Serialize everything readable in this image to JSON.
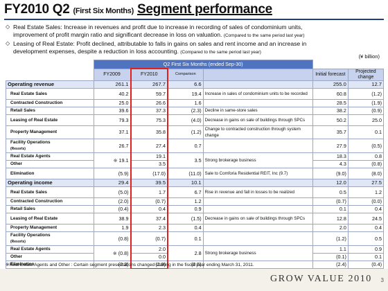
{
  "title": {
    "main": "FY2010 Q2",
    "sub": "(First Six Months)",
    "main2": "Segment performance"
  },
  "bullets": [
    {
      "mark": "◇",
      "line1": "Real Estate Sales: Increase in revenues and profit due to increase in recording of sales of condominium units,",
      "line2": "improvement of profit margin ratio and significant decrease in loss on valuation.",
      "note": "(Compared to the same period last year)"
    },
    {
      "mark": "◇",
      "line1": "Leasing of Real Estate: Profit declined, attributable to falls in gains on sales and rent income and an increase in",
      "line2": "development expenses, despite a reduction in loss accounting.",
      "note": "(Compared to the same period last year)"
    }
  ],
  "unit": "(¥ billion)",
  "table": {
    "group_header": "Q2 First Six Months (ended Sep-30)",
    "headers": {
      "fy2009": "FY2009",
      "fy2010": "FY2010",
      "comparison": "Comparison",
      "initial": "Initial forecast",
      "projected": "Projected change"
    },
    "rows": [
      {
        "label": "Operating revenue",
        "fy2009": "261.1",
        "fy2010": "267.7",
        "comp": "6.6",
        "comment": "",
        "initial": "255.0",
        "proj": "12.7"
      },
      {
        "label": "Real Estate Sales",
        "fy2009": "40.2",
        "fy2010": "59.7",
        "comp": "19.4",
        "comment": "Increase in sales of condominium units to be recorded",
        "initial": "60.8",
        "proj": "(1.2)"
      },
      {
        "label": "Contracted Construction",
        "fy2009": "25.0",
        "fy2010": "26.6",
        "comp": "1.6",
        "comment": "",
        "initial": "28.5",
        "proj": "(1.9)"
      },
      {
        "label": "Retail Sales",
        "fy2009": "39.6",
        "fy2010": "37.3",
        "comp": "(2.3)",
        "comment": "Decline in same-store sales",
        "initial": "38.2",
        "proj": "(0.9)"
      },
      {
        "label": "Leasing of Real Estate",
        "fy2009": "79.3",
        "fy2010": "75.3",
        "comp": "(4.0)",
        "comment": "Decrease in gains on sale of buildings through SPCs",
        "initial": "50.2",
        "proj": "25.0"
      },
      {
        "label": "Property Management",
        "fy2009": "37.1",
        "fy2010": "35.8",
        "comp": "(1.2)",
        "comment": "Change to contracted construction through system change",
        "initial": "35.7",
        "proj": "0.1"
      },
      {
        "label": "Facility Operations",
        "label_note": "(Resorts)",
        "fy2009": "26.7",
        "fy2010": "27.4",
        "comp": "0.7",
        "comment": "",
        "initial": "27.9",
        "proj": "(0.5)"
      },
      {
        "label": "Real Estate Agents",
        "fy2010": "19.1",
        "initial": "18.3",
        "proj": "0.8"
      },
      {
        "label": "Other",
        "fy2010": "3.5",
        "initial": "4.3",
        "proj": "(0.8)"
      },
      {
        "label": "Elimination",
        "fy2009": "(5.9)",
        "fy2010": "(17.0)",
        "comp": "(11.0)",
        "comment": "Sale to Comforia Residential REIT, Inc (9.7)",
        "initial": "(9.0)",
        "proj": "(8.0)"
      },
      {
        "label": "Operating income",
        "fy2009": "29.4",
        "fy2010": "39.5",
        "comp": "10.1",
        "comment": "",
        "initial": "12.0",
        "proj": "27.5"
      },
      {
        "label": "Real Estate Sales",
        "fy2009": "(5.0)",
        "fy2010": "1.7",
        "comp": "6.7",
        "comment": "Rise in revenue and fall in losses to be realized",
        "initial": "0.5",
        "proj": "1.2"
      },
      {
        "label": "Contracted Construction",
        "fy2009": "(2.0)",
        "fy2010": "(0.7)",
        "comp": "1.2",
        "comment": "",
        "initial": "(0.7)",
        "proj": "(0.0)"
      },
      {
        "label": "Retail Sales",
        "fy2009": "(0.4)",
        "fy2010": "0.4",
        "comp": "0.9",
        "comment": "",
        "initial": "0.1",
        "proj": "0.4"
      },
      {
        "label": "Leasing of Real Estate",
        "fy2009": "38.9",
        "fy2010": "37.4",
        "comp": "(1.5)",
        "comment": "Decrease in gains on sale of buildings through SPCs",
        "initial": "12.8",
        "proj": "24.5"
      },
      {
        "label": "Property Management",
        "fy2009": "1.9",
        "fy2010": "2.3",
        "comp": "0.4",
        "comment": "",
        "initial": "2.0",
        "proj": "0.4"
      },
      {
        "label": "Facility Operations",
        "label_note": "(Resorts)",
        "fy2009": "(0.8)",
        "fy2010": "(0.7)",
        "comp": "0.1",
        "comment": "",
        "initial": "(1.2)",
        "proj": "0.5"
      },
      {
        "label": "Real Estate Agents",
        "fy2010": "2.0",
        "initial": "1.1",
        "proj": "0.9"
      },
      {
        "label": "Other",
        "fy2010": "0.0",
        "initial": "(0.1)",
        "proj": "0.1"
      },
      {
        "label": "Elimination",
        "fy2009": "(2.3)",
        "fy2010": "(2.9)",
        "comp": "(0.5)",
        "comment": "",
        "initial": "(2.4)",
        "proj": "(0.4)"
      }
    ],
    "merged": {
      "rev_fy2009": "19.1",
      "rev_comp": "3.5",
      "rev_comment": "Strong brokerage business",
      "inc_fy2009": "(0.8)",
      "inc_comp": "2.8",
      "inc_comment": "Strong brokerage business",
      "asterisk": "※"
    }
  },
  "footnote": "※Real Estate Agents and Other : Certain segment presentations changed starting in the fiscal year ending March 31, 2011.",
  "logo": "GROW VALUE 2010",
  "page_number": "3"
}
